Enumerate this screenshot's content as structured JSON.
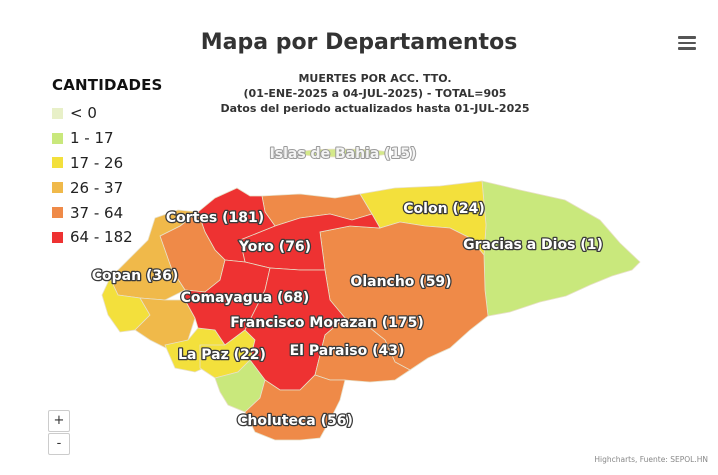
{
  "title": "Mapa por Departamentos",
  "subtitle": [
    "MUERTES POR ACC. TTO.",
    "(01-ENE-2025 a 04-JUL-2025) - TOTAL=905",
    "Datos del periodo actualizados hasta 01-JUL-2025"
  ],
  "menu_icon": "hamburger-menu-icon",
  "legend": {
    "title": "CANTIDADES",
    "items": [
      {
        "label": "< 0",
        "color": "#e8f0c8"
      },
      {
        "label": "1 - 17",
        "color": "#c9e87c"
      },
      {
        "label": "17 - 26",
        "color": "#f3e03c"
      },
      {
        "label": "26 - 37",
        "color": "#f0b94a"
      },
      {
        "label": "37 - 64",
        "color": "#ef8a48"
      },
      {
        "label": "64 - 182",
        "color": "#ee3232"
      }
    ]
  },
  "zoom": {
    "in_label": "+",
    "out_label": "-"
  },
  "credits": "Highcharts, Fuente: SEPOL.HN",
  "departments": [
    {
      "name": "Islas de Bahia",
      "value": 15
    },
    {
      "name": "Cortes",
      "value": 181
    },
    {
      "name": "Colon",
      "value": 24
    },
    {
      "name": "Yoro",
      "value": 76
    },
    {
      "name": "Gracias a Dios",
      "value": 1
    },
    {
      "name": "Copan",
      "value": 36
    },
    {
      "name": "Olancho",
      "value": 59
    },
    {
      "name": "Comayagua",
      "value": 68
    },
    {
      "name": "Francisco Morazan",
      "value": 175
    },
    {
      "name": "La Paz",
      "value": 22
    },
    {
      "name": "El Paraiso",
      "value": 43
    },
    {
      "name": "Choluteca",
      "value": 56
    }
  ]
}
